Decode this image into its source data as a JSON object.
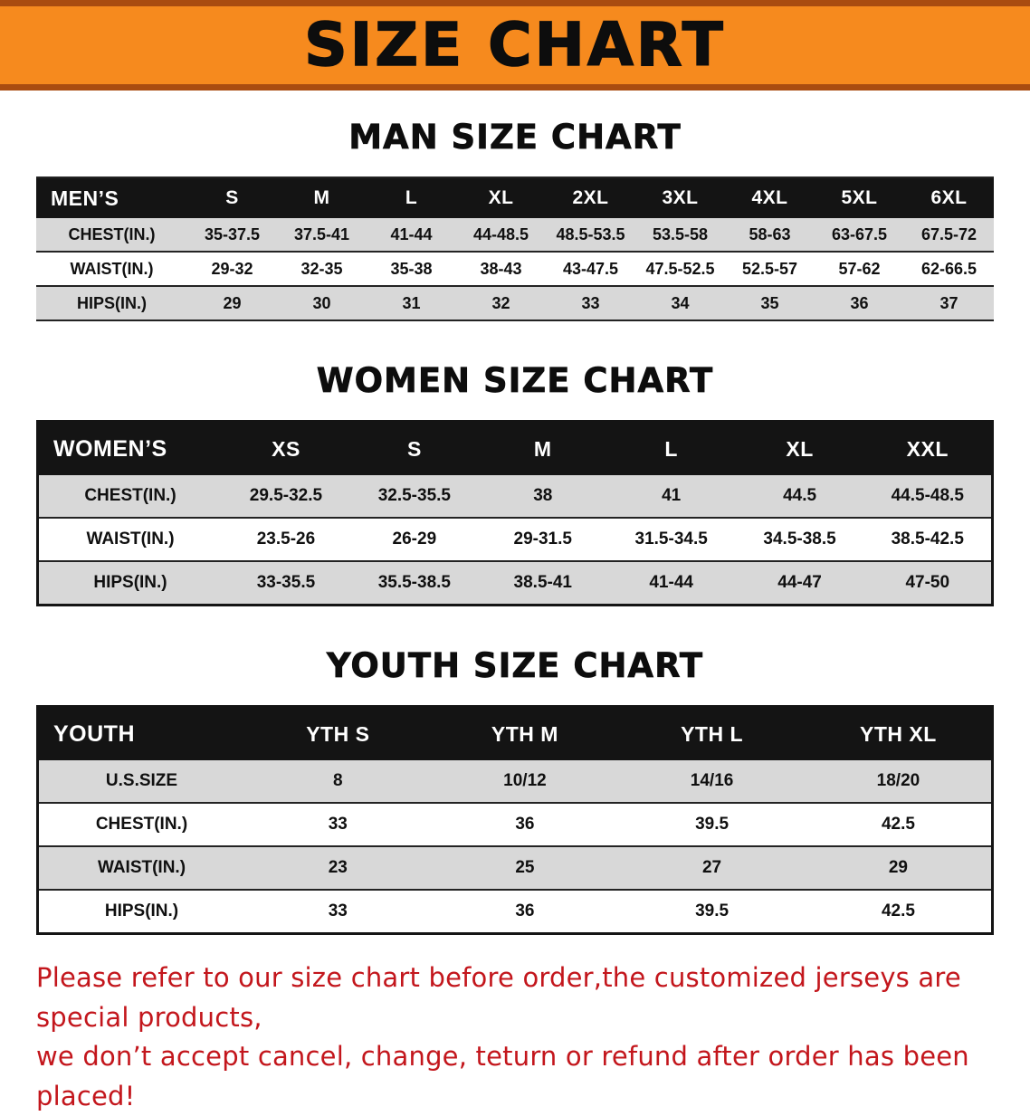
{
  "banner": {
    "title": "SIZE CHART"
  },
  "colors": {
    "banner-bg": "#f68a1e",
    "banner-edge": "#a94c10",
    "header-bg": "#141414",
    "stripe": "#d8d8d8",
    "disclaimer-color": "#c3161c"
  },
  "sections": [
    {
      "heading": "MAN SIZE CHART",
      "table": {
        "header": [
          "MEN’S",
          "S",
          "M",
          "L",
          "XL",
          "2XL",
          "3XL",
          "4XL",
          "5XL",
          "6XL"
        ],
        "rows": [
          [
            "CHEST(IN.)",
            "35-37.5",
            "37.5-41",
            "41-44",
            "44-48.5",
            "48.5-53.5",
            "53.5-58",
            "58-63",
            "63-67.5",
            "67.5-72"
          ],
          [
            "WAIST(IN.)",
            "29-32",
            "32-35",
            "35-38",
            "38-43",
            "43-47.5",
            "47.5-52.5",
            "52.5-57",
            "57-62",
            "62-66.5"
          ],
          [
            "HIPS(IN.)",
            "29",
            "30",
            "31",
            "32",
            "33",
            "34",
            "35",
            "36",
            "37"
          ]
        ]
      }
    },
    {
      "heading": "WOMEN SIZE CHART",
      "table": {
        "header": [
          "WOMEN’S",
          "XS",
          "S",
          "M",
          "L",
          "XL",
          "XXL"
        ],
        "rows": [
          [
            "CHEST(IN.)",
            "29.5-32.5",
            "32.5-35.5",
            "38",
            "41",
            "44.5",
            "44.5-48.5"
          ],
          [
            "WAIST(IN.)",
            "23.5-26",
            "26-29",
            "29-31.5",
            "31.5-34.5",
            "34.5-38.5",
            "38.5-42.5"
          ],
          [
            "HIPS(IN.)",
            "33-35.5",
            "35.5-38.5",
            "38.5-41",
            "41-44",
            "44-47",
            "47-50"
          ]
        ]
      }
    },
    {
      "heading": "YOUTH SIZE CHART",
      "table": {
        "header": [
          "YOUTH",
          "YTH S",
          "YTH M",
          "YTH L",
          "YTH XL"
        ],
        "rows": [
          [
            "U.S.SIZE",
            "8",
            "10/12",
            "14/16",
            "18/20"
          ],
          [
            "CHEST(IN.)",
            "33",
            "36",
            "39.5",
            "42.5"
          ],
          [
            "WAIST(IN.)",
            "23",
            "25",
            "27",
            "29"
          ],
          [
            "HIPS(IN.)",
            "33",
            "36",
            "39.5",
            "42.5"
          ]
        ]
      }
    }
  ],
  "disclaimer": {
    "line1": "Please refer to our size chart before order,the customized jerseys are special products,",
    "line2": "we don’t accept cancel, change, teturn or refund after order has been placed!"
  }
}
